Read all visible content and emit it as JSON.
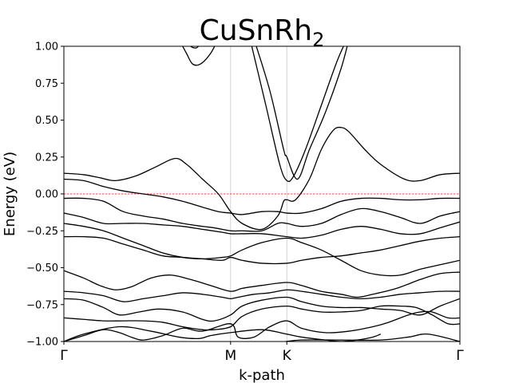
{
  "chart_data": {
    "type": "line",
    "title": {
      "base": "CuSnRh",
      "subscript": "2"
    },
    "xlabel": "k-path",
    "ylabel": "Energy (eV)",
    "ylim": [
      -1.0,
      1.0
    ],
    "xlim": [
      0,
      1
    ],
    "yticks": [
      1.0,
      0.75,
      0.5,
      0.25,
      0.0,
      -0.25,
      -0.5,
      -0.75,
      -1.0
    ],
    "ytick_labels": [
      "1.00",
      "0.75",
      "0.50",
      "0.25",
      "0.00",
      "−0.25",
      "−0.50",
      "−0.75",
      "−1.00"
    ],
    "kpoints": [
      {
        "label": "Γ",
        "x": 0.0
      },
      {
        "label": "M",
        "x": 0.421
      },
      {
        "label": "K",
        "x": 0.563
      },
      {
        "label": "Γ",
        "x": 1.0
      }
    ],
    "fermi_level": 0.0,
    "fermi_color": "#ff0000",
    "vline_color": "#c8c8c8",
    "line_color": "#000000",
    "grid": false,
    "legend": "none",
    "bands": [
      {
        "x": [
          0,
          0.05,
          0.14,
          0.22,
          0.29,
          0.341,
          0.37,
          0.42,
          0.5,
          0.563,
          0.6,
          0.66,
          0.7,
          0.74,
          0.78,
          0.8
        ],
        "y": [
          -1.0,
          -0.95,
          -0.9,
          -0.93,
          -0.97,
          -0.98,
          -0.96,
          -0.94,
          -0.92,
          -0.95,
          -0.97,
          -0.99,
          -1.0,
          -0.99,
          -0.97,
          -0.95
        ]
      },
      {
        "x": [
          0.56,
          0.6,
          0.7,
          0.8,
          0.87,
          0.92,
          1.0
        ],
        "y": [
          -1.0,
          -0.99,
          -0.99,
          -0.99,
          -0.97,
          -0.95,
          -1.0
        ]
      },
      {
        "x": [
          0,
          0.05,
          0.1,
          0.14,
          0.17,
          0.2,
          0.25,
          0.3,
          0.35,
          0.421,
          0.44,
          0.48,
          0.52,
          0.563,
          0.6,
          0.66,
          0.72,
          0.78,
          0.82,
          0.87,
          0.9,
          0.93,
          0.97,
          1.0
        ],
        "y": [
          -1.0,
          -0.96,
          -0.92,
          -0.94,
          -0.97,
          -0.99,
          -0.96,
          -0.91,
          -0.93,
          -0.88,
          -0.97,
          -0.97,
          -0.9,
          -0.86,
          -0.91,
          -0.94,
          -0.93,
          -0.9,
          -0.87,
          -0.82,
          -0.8,
          -0.8,
          -0.84,
          -0.84
        ]
      },
      {
        "x": [
          0,
          0.05,
          0.1,
          0.15,
          0.2,
          0.25,
          0.3,
          0.35,
          0.38,
          0.421,
          0.45,
          0.5,
          0.563,
          0.6,
          0.65,
          0.7,
          0.75,
          0.8,
          0.85,
          0.89,
          0.93,
          0.97,
          1.0
        ],
        "y": [
          -0.84,
          -0.85,
          -0.86,
          -0.86,
          -0.86,
          -0.87,
          -0.9,
          -0.92,
          -0.92,
          -0.9,
          -0.83,
          -0.78,
          -0.76,
          -0.78,
          -0.8,
          -0.8,
          -0.79,
          -0.76,
          -0.76,
          -0.77,
          -0.82,
          -0.88,
          -0.88
        ]
      },
      {
        "x": [
          0,
          0.05,
          0.1,
          0.14,
          0.19,
          0.24,
          0.3,
          0.35,
          0.38,
          0.421,
          0.45,
          0.5,
          0.563,
          0.6,
          0.65,
          0.7,
          0.75,
          0.8,
          0.85,
          0.9,
          0.95,
          1.0
        ],
        "y": [
          -0.71,
          -0.72,
          -0.77,
          -0.82,
          -0.8,
          -0.78,
          -0.8,
          -0.85,
          -0.86,
          -0.82,
          -0.76,
          -0.72,
          -0.7,
          -0.73,
          -0.76,
          -0.77,
          -0.77,
          -0.78,
          -0.79,
          -0.82,
          -0.76,
          -0.71
        ]
      },
      {
        "x": [
          0,
          0.05,
          0.1,
          0.15,
          0.2,
          0.25,
          0.3,
          0.35,
          0.4,
          0.421,
          0.44,
          0.48,
          0.52,
          0.563,
          0.6,
          0.65,
          0.7,
          0.75,
          0.8,
          0.85,
          0.9,
          0.95,
          1.0
        ],
        "y": [
          -0.66,
          -0.67,
          -0.69,
          -0.73,
          -0.71,
          -0.69,
          -0.67,
          -0.68,
          -0.7,
          -0.71,
          -0.7,
          -0.68,
          -0.67,
          -0.65,
          -0.66,
          -0.68,
          -0.7,
          -0.71,
          -0.7,
          -0.68,
          -0.67,
          -0.66,
          -0.66
        ]
      },
      {
        "x": [
          0,
          0.05,
          0.09,
          0.13,
          0.17,
          0.22,
          0.27,
          0.32,
          0.37,
          0.421,
          0.45,
          0.5,
          0.563,
          0.6,
          0.65,
          0.7,
          0.74,
          0.78,
          0.84,
          0.9,
          0.95,
          1.0
        ],
        "y": [
          -0.52,
          -0.57,
          -0.62,
          -0.65,
          -0.63,
          -0.57,
          -0.55,
          -0.58,
          -0.62,
          -0.66,
          -0.64,
          -0.62,
          -0.6,
          -0.62,
          -0.66,
          -0.68,
          -0.7,
          -0.68,
          -0.64,
          -0.58,
          -0.54,
          -0.53
        ]
      },
      {
        "x": [
          0,
          0.05,
          0.1,
          0.15,
          0.2,
          0.25,
          0.3,
          0.35,
          0.4,
          0.421,
          0.45,
          0.5,
          0.563,
          0.6,
          0.65,
          0.7,
          0.75,
          0.8,
          0.85,
          0.9,
          0.95,
          1.0
        ],
        "y": [
          -0.29,
          -0.29,
          -0.3,
          -0.34,
          -0.38,
          -0.42,
          -0.43,
          -0.44,
          -0.45,
          -0.43,
          -0.45,
          -0.47,
          -0.47,
          -0.45,
          -0.43,
          -0.42,
          -0.4,
          -0.38,
          -0.35,
          -0.32,
          -0.3,
          -0.29
        ]
      },
      {
        "x": [
          0,
          0.05,
          0.1,
          0.15,
          0.2,
          0.25,
          0.3,
          0.35,
          0.4,
          0.421,
          0.45,
          0.5,
          0.563,
          0.6,
          0.65,
          0.7,
          0.75,
          0.8,
          0.85,
          0.9,
          0.95,
          1.0
        ],
        "y": [
          -0.2,
          -0.22,
          -0.25,
          -0.3,
          -0.35,
          -0.4,
          -0.43,
          -0.44,
          -0.43,
          -0.42,
          -0.38,
          -0.33,
          -0.3,
          -0.33,
          -0.38,
          -0.45,
          -0.52,
          -0.55,
          -0.55,
          -0.51,
          -0.48,
          -0.45
        ]
      },
      {
        "x": [
          0,
          0.05,
          0.1,
          0.15,
          0.2,
          0.25,
          0.3,
          0.35,
          0.4,
          0.421,
          0.45,
          0.5,
          0.563,
          0.6,
          0.65,
          0.7,
          0.75,
          0.8,
          0.85,
          0.9,
          0.95,
          1.0
        ],
        "y": [
          -0.13,
          -0.16,
          -0.2,
          -0.2,
          -0.2,
          -0.21,
          -0.22,
          -0.24,
          -0.26,
          -0.27,
          -0.27,
          -0.27,
          -0.29,
          -0.3,
          -0.28,
          -0.24,
          -0.22,
          -0.24,
          -0.27,
          -0.27,
          -0.23,
          -0.19
        ]
      },
      {
        "x": [
          0,
          0.05,
          0.1,
          0.15,
          0.2,
          0.25,
          0.3,
          0.35,
          0.38,
          0.421,
          0.45,
          0.5,
          0.54,
          0.563,
          0.6,
          0.65,
          0.7,
          0.75,
          0.8,
          0.85,
          0.9,
          0.95,
          1.0
        ],
        "y": [
          -0.03,
          -0.03,
          -0.05,
          -0.12,
          -0.15,
          -0.17,
          -0.2,
          -0.22,
          -0.23,
          -0.25,
          -0.25,
          -0.25,
          -0.2,
          -0.2,
          -0.22,
          -0.2,
          -0.14,
          -0.1,
          -0.12,
          -0.16,
          -0.2,
          -0.15,
          -0.12
        ]
      },
      {
        "x": [
          0,
          0.05,
          0.1,
          0.15,
          0.2,
          0.25,
          0.3,
          0.35,
          0.39,
          0.421,
          0.45,
          0.5,
          0.54,
          0.563,
          0.6,
          0.65,
          0.7,
          0.75,
          0.8,
          0.85,
          0.9,
          0.95,
          1.0
        ],
        "y": [
          0.1,
          0.09,
          0.05,
          0.02,
          0.0,
          -0.02,
          -0.05,
          -0.09,
          -0.12,
          -0.13,
          -0.14,
          -0.12,
          -0.12,
          -0.13,
          -0.13,
          -0.1,
          -0.05,
          -0.03,
          -0.03,
          -0.04,
          -0.04,
          -0.03,
          -0.03
        ]
      },
      {
        "x": [
          0,
          0.05,
          0.09,
          0.13,
          0.18,
          0.23,
          0.28,
          0.31,
          0.35,
          0.39,
          0.421,
          0.45,
          0.5,
          0.54,
          0.555,
          0.563,
          0.585,
          0.62,
          0.65,
          0.68,
          0.7,
          0.72,
          0.76,
          0.8,
          0.86,
          0.9,
          0.95,
          1.0
        ],
        "y": [
          0.14,
          0.13,
          0.11,
          0.09,
          0.12,
          0.18,
          0.24,
          0.2,
          0.1,
          0.0,
          -0.12,
          -0.2,
          -0.24,
          -0.15,
          -0.05,
          -0.04,
          -0.04,
          0.1,
          0.3,
          0.43,
          0.45,
          0.42,
          0.3,
          0.2,
          0.1,
          0.09,
          0.13,
          0.14
        ]
      },
      {
        "x": [
          0.48,
          0.52,
          0.555,
          0.563,
          0.59,
          0.62,
          0.66,
          0.7,
          0.72
        ],
        "y": [
          1.05,
          0.7,
          0.3,
          0.25,
          0.1,
          0.3,
          0.55,
          0.85,
          1.05
        ]
      },
      {
        "x": [
          0.47,
          0.51,
          0.545,
          0.563,
          0.58,
          0.61,
          0.65,
          0.69,
          0.715
        ],
        "y": [
          1.05,
          0.6,
          0.2,
          0.09,
          0.12,
          0.3,
          0.6,
          0.9,
          1.05
        ]
      },
      {
        "x": [
          0.29,
          0.31,
          0.325,
          0.345,
          0.37,
          0.39
        ],
        "y": [
          1.05,
          0.95,
          0.88,
          0.88,
          0.95,
          1.05
        ]
      },
      {
        "x": [
          0.305,
          0.32,
          0.335,
          0.345
        ],
        "y": [
          1.05,
          1.0,
          0.99,
          1.02
        ]
      }
    ]
  }
}
